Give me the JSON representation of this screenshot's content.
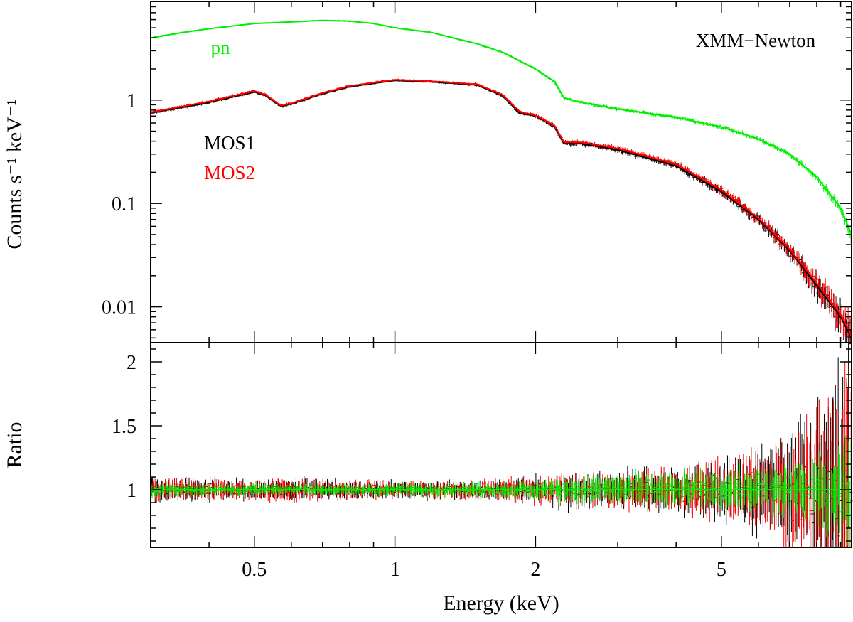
{
  "chart_data": [
    {
      "panel": "spectrum",
      "type": "scatter",
      "title": "",
      "annotation": "XMM−Newton",
      "xlabel": "Energy (keV)",
      "ylabel": "Counts s⁻¹ keV⁻¹",
      "x_scale": "log",
      "y_scale": "log",
      "xlim": [
        0.3,
        9.5
      ],
      "ylim": [
        0.0045,
        9
      ],
      "y_ticks": [
        0.01,
        0.1,
        1
      ],
      "y_tick_labels": [
        "0.01",
        "0.1",
        "1"
      ],
      "grid": false,
      "legend": "inline labels at left (pn, MOS1, MOS2)",
      "series": [
        {
          "name": "pn",
          "color": "#00ee00",
          "x": [
            0.3,
            0.35,
            0.4,
            0.5,
            0.6,
            0.7,
            0.8,
            0.9,
            1.0,
            1.2,
            1.5,
            1.7,
            2.0,
            2.2,
            2.3,
            2.5,
            3.0,
            4.0,
            5.0,
            6.0,
            7.0,
            8.0,
            9.0,
            9.5
          ],
          "values": [
            4.0,
            4.5,
            4.9,
            5.5,
            5.7,
            5.9,
            5.8,
            5.5,
            5.0,
            4.5,
            3.5,
            2.9,
            2.0,
            1.5,
            1.05,
            0.95,
            0.82,
            0.68,
            0.55,
            0.42,
            0.3,
            0.18,
            0.09,
            0.05
          ]
        },
        {
          "name": "MOS1",
          "color": "#000000",
          "x": [
            0.3,
            0.4,
            0.5,
            0.53,
            0.57,
            0.6,
            0.7,
            0.8,
            1.0,
            1.2,
            1.5,
            1.7,
            1.85,
            2.0,
            2.2,
            2.3,
            2.5,
            3.0,
            4.0,
            5.0,
            6.0,
            7.0,
            8.0,
            9.0,
            9.5
          ],
          "values": [
            0.75,
            0.95,
            1.2,
            1.1,
            0.87,
            0.92,
            1.15,
            1.35,
            1.55,
            1.5,
            1.4,
            1.1,
            0.75,
            0.7,
            0.55,
            0.38,
            0.38,
            0.33,
            0.23,
            0.13,
            0.07,
            0.035,
            0.016,
            0.008,
            0.005
          ]
        },
        {
          "name": "MOS2",
          "color": "#ff0000",
          "x": [
            0.3,
            0.4,
            0.5,
            0.53,
            0.57,
            0.6,
            0.7,
            0.8,
            1.0,
            1.2,
            1.5,
            1.7,
            1.85,
            2.0,
            2.2,
            2.3,
            2.5,
            3.0,
            4.0,
            5.0,
            6.0,
            7.0,
            8.0,
            9.0,
            9.5
          ],
          "values": [
            0.76,
            0.97,
            1.22,
            1.12,
            0.88,
            0.93,
            1.17,
            1.37,
            1.57,
            1.52,
            1.42,
            1.12,
            0.77,
            0.71,
            0.56,
            0.39,
            0.39,
            0.34,
            0.24,
            0.135,
            0.072,
            0.036,
            0.017,
            0.0085,
            0.0052
          ]
        }
      ]
    },
    {
      "panel": "ratio",
      "type": "scatter",
      "xlabel": "Energy (keV)",
      "ylabel": "Ratio",
      "x_scale": "log",
      "xlim": [
        0.3,
        9.5
      ],
      "ylim": [
        0.55,
        2.15
      ],
      "x_ticks": [
        0.5,
        1,
        2,
        5
      ],
      "x_tick_labels": [
        "0.5",
        "1",
        "2",
        "5"
      ],
      "y_ticks": [
        1,
        1.5,
        2
      ],
      "y_tick_labels": [
        "1",
        "1.5",
        "2"
      ],
      "reference_line": 1,
      "grid": false,
      "series": [
        {
          "name": "MOS1",
          "color": "#000000",
          "x": [
            0.3,
            1.0,
            2.0,
            3.0,
            5.0,
            9.5
          ],
          "values": [
            1.0,
            1.0,
            1.0,
            1.0,
            1.0,
            1.0
          ]
        },
        {
          "name": "MOS2",
          "color": "#ff0000",
          "x": [
            0.3,
            1.0,
            2.0,
            3.0,
            5.0,
            9.5
          ],
          "values": [
            1.0,
            1.0,
            1.0,
            1.0,
            1.0,
            1.0
          ]
        },
        {
          "name": "pn",
          "color": "#00ee00",
          "x": [
            0.3,
            1.0,
            2.0,
            3.0,
            5.0,
            9.5
          ],
          "values": [
            1.0,
            1.0,
            1.0,
            1.0,
            1.0,
            1.0
          ]
        }
      ]
    }
  ]
}
